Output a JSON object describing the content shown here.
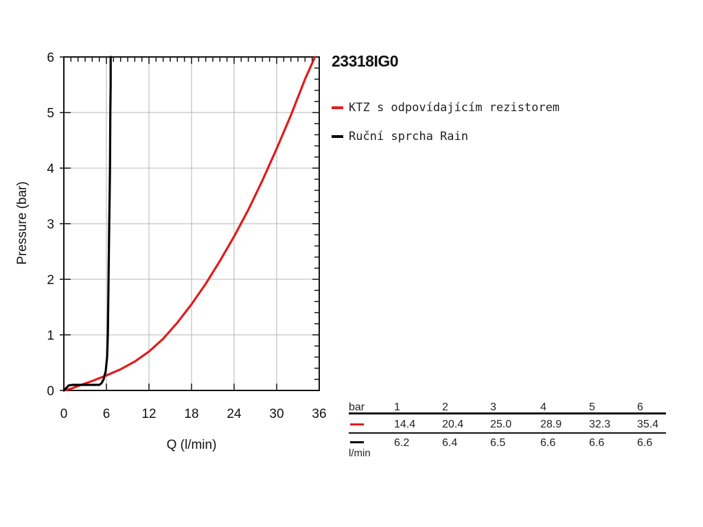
{
  "chart_data": {
    "type": "line",
    "title": "23318IG0",
    "xlabel": "Q (l/min)",
    "ylabel": "Pressure (bar)",
    "xlim": [
      0,
      36
    ],
    "ylim": [
      0,
      6
    ],
    "xticks": [
      "0",
      "6",
      "12",
      "18",
      "24",
      "30",
      "36"
    ],
    "yticks": [
      "0",
      "1",
      "2",
      "3",
      "4",
      "5",
      "6"
    ],
    "grid": true,
    "legend_position": "right",
    "series": [
      {
        "name": "KTZ s odpovídajícím rezistorem",
        "color": "#e01b1b",
        "x": [
          0,
          1,
          2,
          4,
          6,
          8,
          10,
          12,
          14,
          16,
          18,
          20,
          22,
          24,
          26,
          28,
          30,
          32,
          34,
          35.4
        ],
        "y": [
          0,
          0.03,
          0.08,
          0.17,
          0.27,
          0.38,
          0.52,
          0.7,
          0.93,
          1.22,
          1.55,
          1.92,
          2.33,
          2.77,
          3.25,
          3.78,
          4.35,
          4.95,
          5.6,
          6.0
        ]
      },
      {
        "name": "Ruční sprcha Rain",
        "color": "#000000",
        "x": [
          0,
          0.3,
          0.7,
          1.2,
          2,
          3,
          4,
          5,
          5.3,
          5.6,
          5.9,
          6.1,
          6.2,
          6.3,
          6.4,
          6.45,
          6.5,
          6.55,
          6.6,
          6.6
        ],
        "y": [
          0,
          0.04,
          0.09,
          0.1,
          0.1,
          0.1,
          0.1,
          0.1,
          0.13,
          0.2,
          0.35,
          0.6,
          1.0,
          2.0,
          3.0,
          3.5,
          4.0,
          5.0,
          5.5,
          6.0
        ]
      }
    ]
  },
  "table": {
    "header_label": "bar",
    "columns": [
      "1",
      "2",
      "3",
      "4",
      "5",
      "6"
    ],
    "rows": [
      {
        "color": "#e01b1b",
        "values": [
          "14.4",
          "20.4",
          "25.0",
          "28.9",
          "32.3",
          "35.4"
        ]
      },
      {
        "color": "#000000",
        "values": [
          "6.2",
          "6.4",
          "6.5",
          "6.6",
          "6.6",
          "6.6"
        ]
      }
    ],
    "unit_label": "l/min"
  }
}
